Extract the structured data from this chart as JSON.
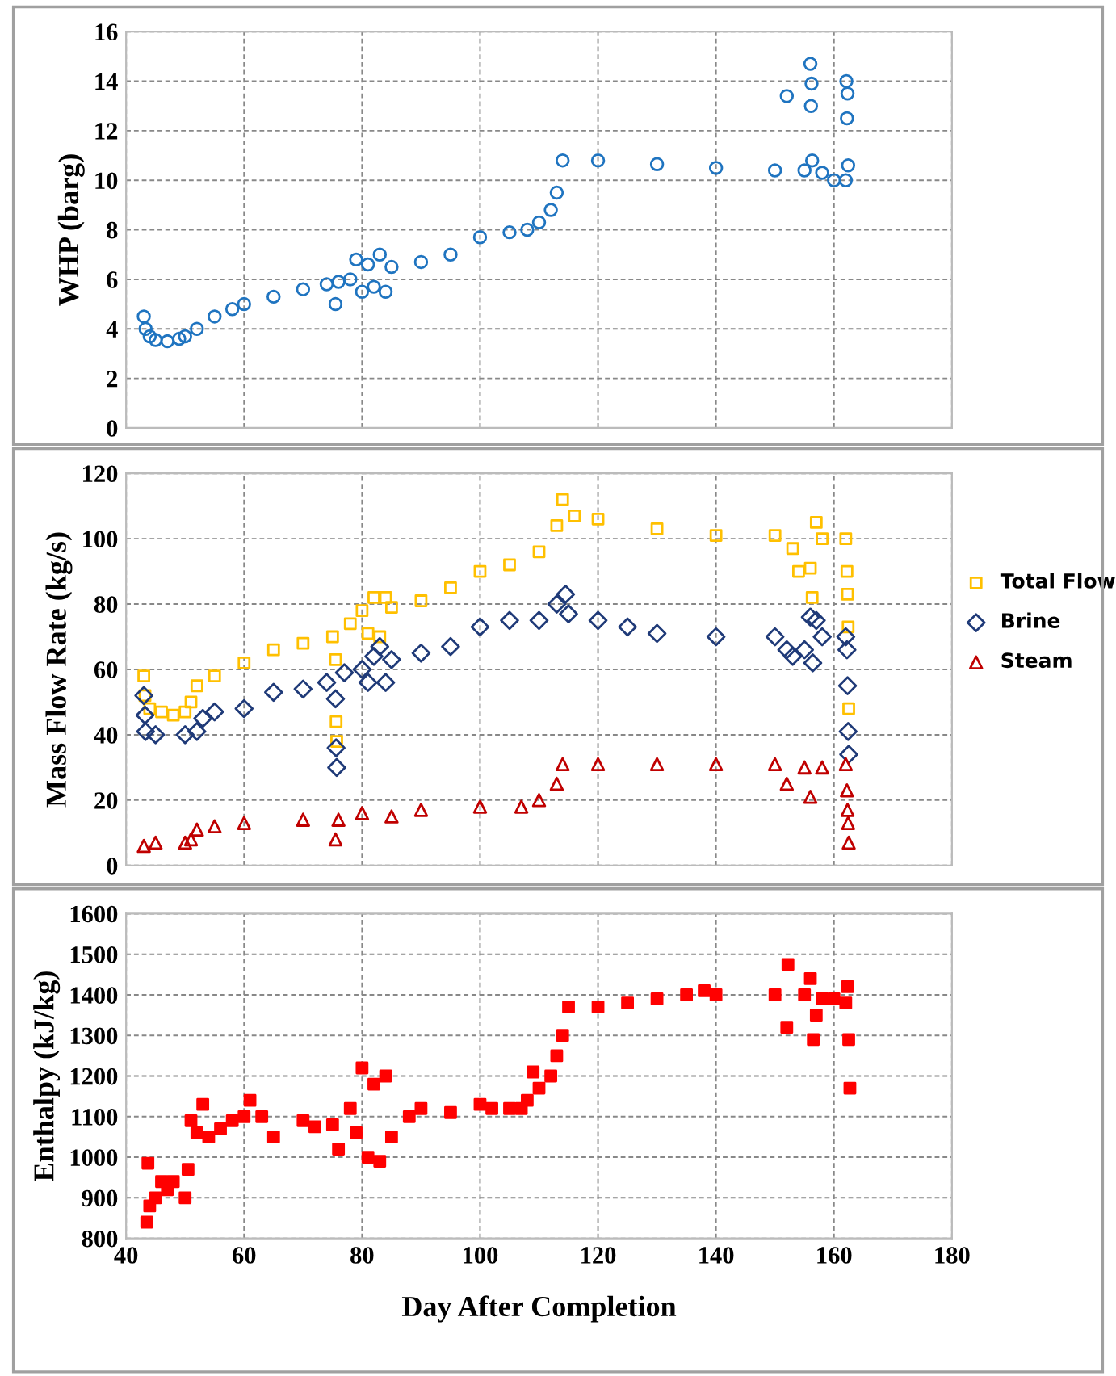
{
  "chart_data": [
    {
      "type": "scatter",
      "ylabel": "WHP (barg)",
      "xlim": [
        40,
        180
      ],
      "xticks": [
        40,
        60,
        80,
        100,
        120,
        140,
        160,
        180
      ],
      "ylim": [
        0,
        16
      ],
      "yticks": [
        0,
        2,
        4,
        6,
        8,
        10,
        12,
        14,
        16
      ],
      "grid": true,
      "tick_labels": "y",
      "legend": false,
      "series": [
        {
          "color": "#1f74c0",
          "marker": "circle",
          "x": [
            43,
            43.3,
            44,
            45,
            47,
            49,
            50,
            52,
            55,
            58,
            60,
            65,
            70,
            74,
            75.5,
            76,
            78,
            79,
            80,
            81,
            82,
            83,
            84,
            85,
            90,
            95,
            100,
            105,
            108,
            110,
            112,
            113,
            114,
            120,
            130,
            140,
            150,
            152,
            155,
            156,
            156.1,
            156.2,
            156.3,
            158,
            160,
            162,
            162.1,
            162.2,
            162.3,
            162.4
          ],
          "values": [
            4.5,
            4.0,
            3.7,
            3.55,
            3.5,
            3.6,
            3.7,
            4.0,
            4.5,
            4.8,
            5.0,
            5.3,
            5.6,
            5.8,
            5.0,
            5.9,
            6.0,
            6.8,
            5.5,
            6.6,
            5.7,
            7.0,
            5.5,
            6.5,
            6.7,
            7.0,
            7.7,
            7.9,
            8.0,
            8.3,
            8.8,
            9.5,
            10.8,
            10.8,
            10.65,
            10.5,
            10.4,
            13.4,
            10.4,
            14.7,
            13.0,
            13.9,
            10.8,
            10.3,
            10.0,
            10.0,
            14.0,
            12.5,
            13.5,
            10.6
          ]
        }
      ]
    },
    {
      "type": "scatter",
      "ylabel": "Mass Flow Rate (kg/s)",
      "xlim": [
        40,
        180
      ],
      "xticks": [
        40,
        60,
        80,
        100,
        120,
        140,
        160,
        180
      ],
      "ylim": [
        0,
        120
      ],
      "yticks": [
        0,
        20,
        40,
        60,
        80,
        100,
        120
      ],
      "grid": true,
      "tick_labels": "y",
      "legend": "right",
      "series": [
        {
          "name": "Total Flow",
          "color": "#ffc000",
          "marker": "square",
          "x": [
            43,
            43.2,
            44,
            46,
            48,
            50,
            51,
            52,
            55,
            60,
            65,
            70,
            75,
            75.5,
            75.6,
            75.7,
            78,
            80,
            81,
            82,
            83,
            84,
            85,
            90,
            95,
            100,
            105,
            110,
            113,
            114,
            116,
            120,
            130,
            140,
            150,
            153,
            154,
            156,
            156.3,
            157,
            158,
            162,
            162.2,
            162.3,
            162.4,
            162.5
          ],
          "values": [
            58,
            52,
            48,
            47,
            46,
            47,
            50,
            55,
            58,
            62,
            66,
            68,
            70,
            63,
            44,
            38,
            74,
            78,
            71,
            82,
            70,
            82,
            79,
            81,
            85,
            90,
            92,
            96,
            104,
            112,
            107,
            106,
            103,
            101,
            101,
            97,
            90,
            91,
            82,
            105,
            100,
            100,
            90,
            83,
            73,
            48
          ]
        },
        {
          "name": "Brine",
          "color": "#1f3a78",
          "marker": "diamond",
          "x": [
            43,
            43.2,
            43.3,
            45,
            50,
            52,
            53,
            55,
            60,
            65,
            70,
            74,
            75.5,
            75.6,
            75.7,
            77,
            80,
            81,
            82,
            83,
            84,
            85,
            90,
            95,
            100,
            105,
            110,
            113,
            114.5,
            115,
            120,
            125,
            130,
            140,
            150,
            152,
            153,
            155,
            156,
            156.4,
            157,
            158,
            162,
            162.2,
            162.3,
            162.4,
            162.5
          ],
          "values": [
            52,
            46,
            41,
            40,
            40,
            41,
            45,
            47,
            48,
            53,
            54,
            56,
            51,
            36,
            30,
            59,
            60,
            56,
            64,
            67,
            56,
            63,
            65,
            67,
            73,
            75,
            75,
            80,
            83,
            77,
            75,
            73,
            71,
            70,
            70,
            66,
            64,
            66,
            76,
            62,
            75,
            70,
            70,
            66,
            55,
            41,
            34
          ]
        },
        {
          "name": "Steam",
          "color": "#c00000",
          "marker": "triangle",
          "x": [
            43,
            45,
            50,
            51,
            52,
            55,
            60,
            70,
            75.5,
            76,
            80,
            85,
            90,
            100,
            107,
            110,
            113,
            114,
            120,
            130,
            140,
            150,
            152,
            155,
            156,
            158,
            162,
            162.2,
            162.3,
            162.4,
            162.5
          ],
          "values": [
            6,
            7,
            7,
            8,
            11,
            12,
            13,
            14,
            8,
            14,
            16,
            15,
            17,
            18,
            18,
            20,
            25,
            31,
            31,
            31,
            31,
            31,
            25,
            30,
            21,
            30,
            31,
            23,
            17,
            13,
            7
          ]
        }
      ]
    },
    {
      "type": "scatter",
      "ylabel": "Enthalpy (kJ/kg)",
      "xlabel": "Day After Completion",
      "xlim": [
        40,
        180
      ],
      "xticks": [
        40,
        60,
        80,
        100,
        120,
        140,
        160,
        180
      ],
      "ylim": [
        800,
        1600
      ],
      "yticks": [
        800,
        900,
        1000,
        1100,
        1200,
        1300,
        1400,
        1500,
        1600
      ],
      "grid": true,
      "legend": false,
      "series": [
        {
          "color": "#ff0000",
          "marker": "square",
          "x": [
            43.5,
            43.7,
            44,
            45,
            46,
            47,
            48,
            50,
            50.5,
            51,
            52,
            53,
            54,
            56,
            58,
            60,
            61,
            63,
            65,
            70,
            72,
            75,
            76,
            78,
            79,
            80,
            81,
            82,
            83,
            84,
            85,
            88,
            90,
            95,
            100,
            102,
            105,
            107,
            108,
            109,
            110,
            112,
            113,
            114,
            115,
            120,
            125,
            130,
            135,
            138,
            140,
            150,
            152,
            152.2,
            155,
            156,
            156.5,
            157,
            158,
            160,
            162,
            162.3,
            162.5,
            162.7
          ],
          "values": [
            840,
            985,
            880,
            900,
            940,
            920,
            940,
            900,
            970,
            1090,
            1060,
            1130,
            1050,
            1070,
            1090,
            1100,
            1140,
            1100,
            1050,
            1090,
            1075,
            1080,
            1020,
            1120,
            1060,
            1220,
            1000,
            1180,
            990,
            1200,
            1050,
            1100,
            1120,
            1110,
            1130,
            1120,
            1120,
            1120,
            1140,
            1210,
            1170,
            1200,
            1250,
            1300,
            1370,
            1370,
            1380,
            1390,
            1400,
            1410,
            1400,
            1400,
            1320,
            1475,
            1400,
            1440,
            1290,
            1350,
            1390,
            1390,
            1380,
            1420,
            1290,
            1170
          ]
        }
      ]
    }
  ]
}
